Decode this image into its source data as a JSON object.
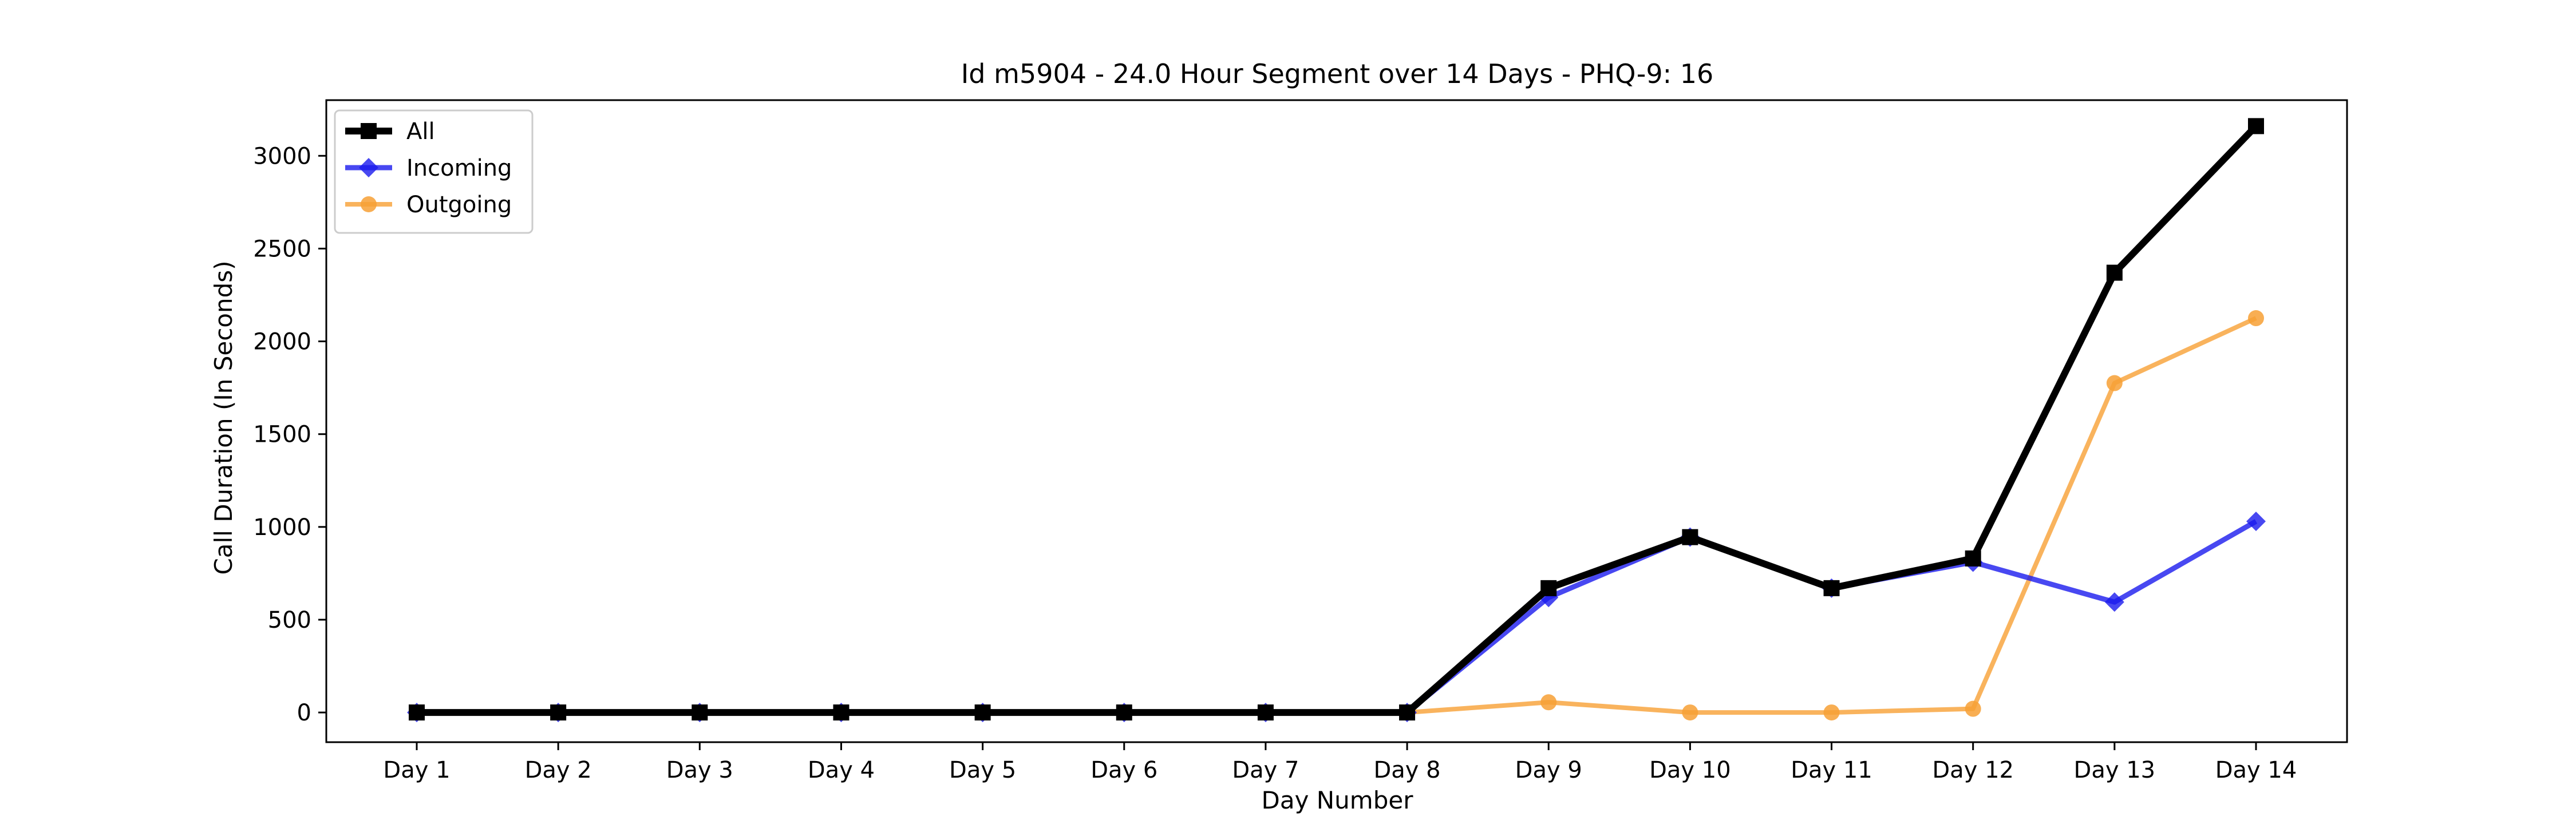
{
  "chart_data": {
    "type": "line",
    "title": "Id m5904 - 24.0 Hour Segment over 14 Days - PHQ-9: 16",
    "xlabel": "Day Number",
    "ylabel": "Call Duration (In Seconds)",
    "categories": [
      "Day 1",
      "Day 2",
      "Day 3",
      "Day 4",
      "Day 5",
      "Day 6",
      "Day 7",
      "Day 8",
      "Day 9",
      "Day 10",
      "Day 11",
      "Day 12",
      "Day 13",
      "Day 14"
    ],
    "ylim": [
      -160,
      3300
    ],
    "yticks": [
      0,
      500,
      1000,
      1500,
      2000,
      2500,
      3000
    ],
    "grid": false,
    "legend": "top-left",
    "series": [
      {
        "name": "All",
        "color": "#000000",
        "marker": "square",
        "values": [
          0,
          0,
          0,
          0,
          0,
          0,
          0,
          0,
          670,
          945,
          670,
          830,
          2370,
          3160
        ]
      },
      {
        "name": "Incoming",
        "color": "#1a1aee",
        "marker": "diamond",
        "values": [
          0,
          0,
          0,
          0,
          0,
          0,
          0,
          0,
          620,
          945,
          670,
          810,
          595,
          1030
        ]
      },
      {
        "name": "Outgoing",
        "color": "#f7a035",
        "marker": "circle",
        "values": [
          0,
          0,
          0,
          0,
          0,
          0,
          0,
          0,
          55,
          0,
          0,
          20,
          1775,
          2125
        ]
      }
    ]
  }
}
